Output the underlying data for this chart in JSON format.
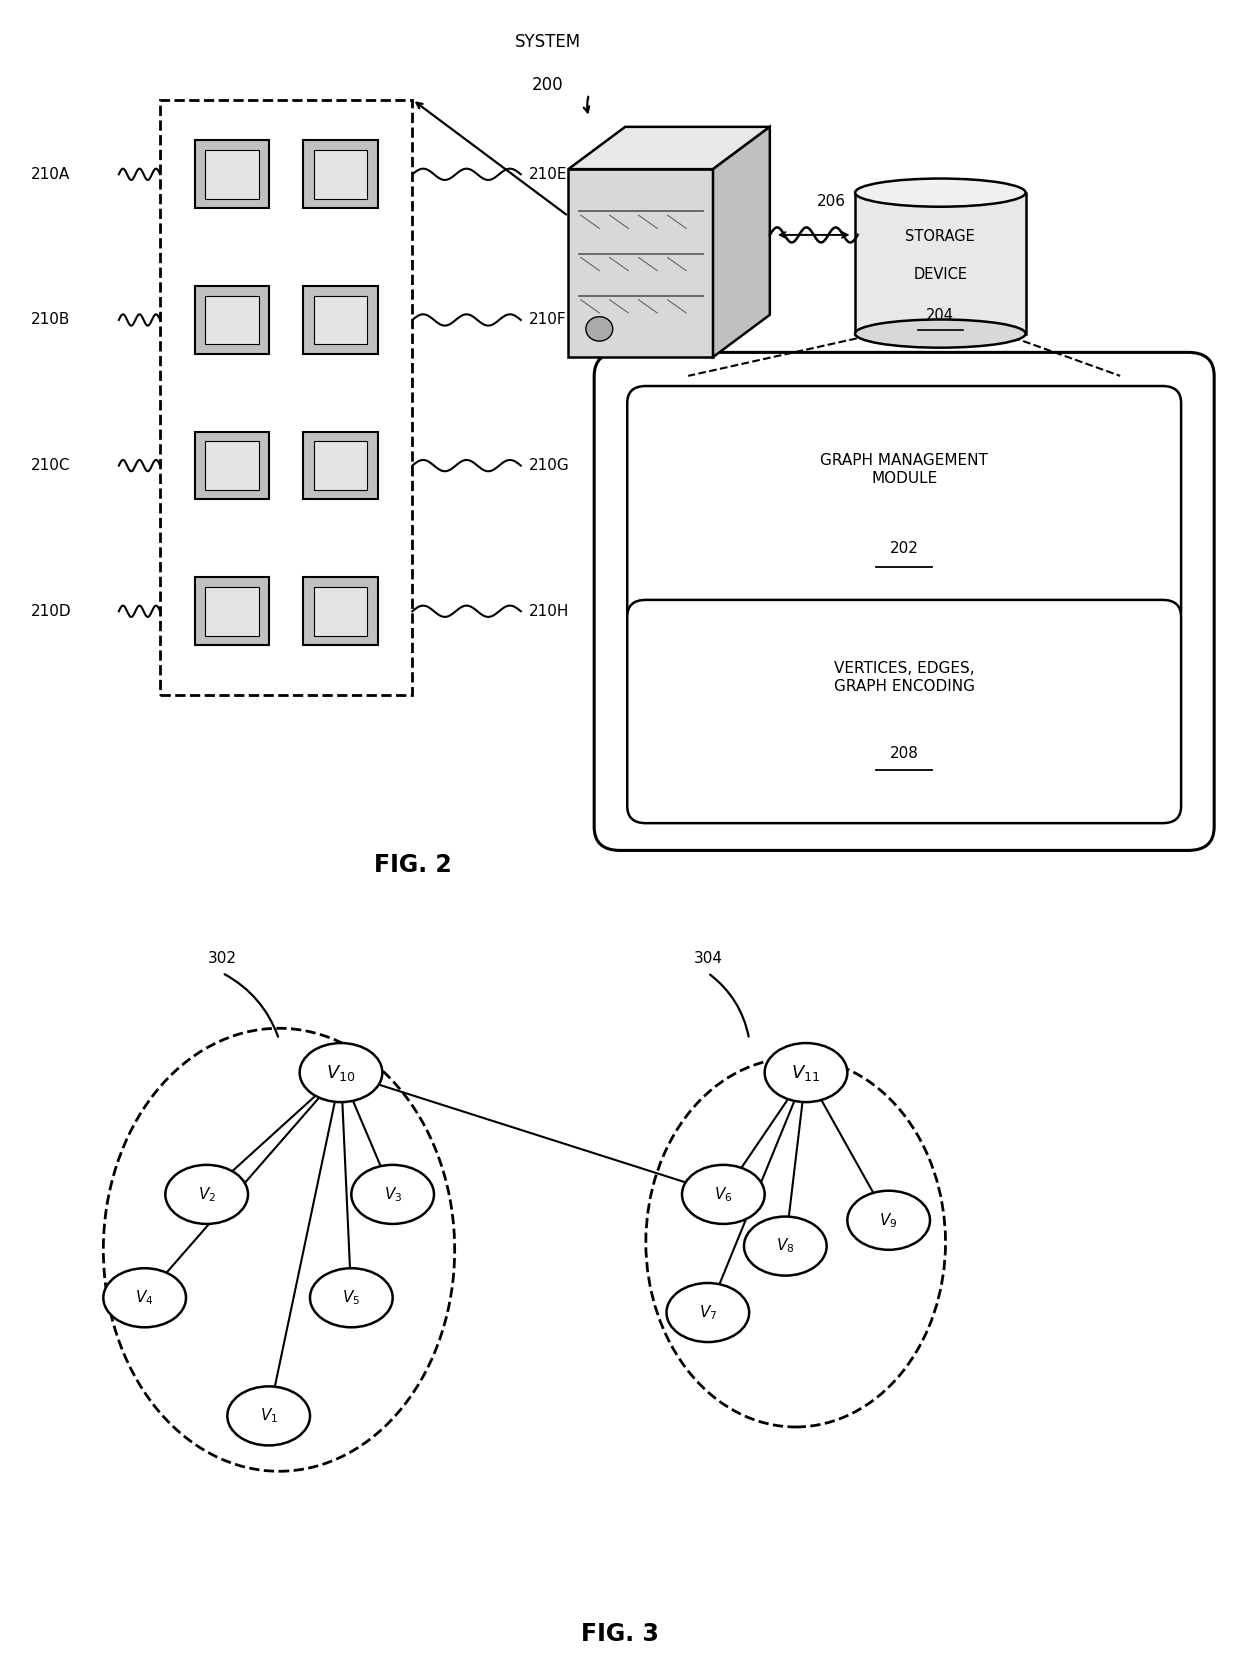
{
  "fig2": {
    "title": "FIG. 2",
    "grid_labels_left": [
      "210A",
      "210B",
      "210C",
      "210D"
    ],
    "grid_labels_right": [
      "210E",
      "210F",
      "210G",
      "210H"
    ]
  },
  "fig3": {
    "title": "FIG. 3"
  },
  "bg_color": "#ffffff"
}
